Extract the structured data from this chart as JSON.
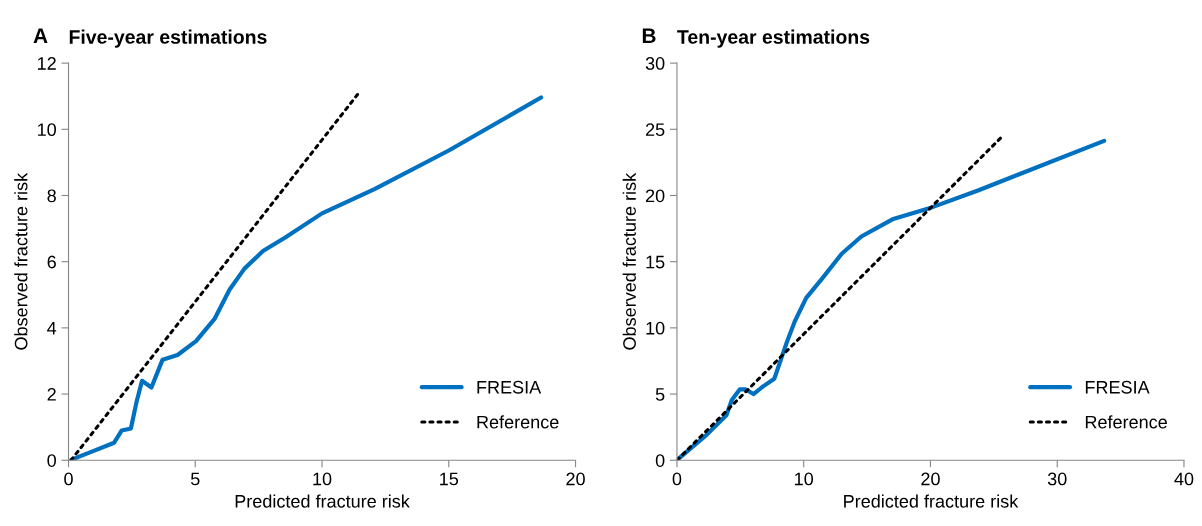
{
  "chart_data": [
    {
      "type": "line",
      "title": "Five-year estimations",
      "annotations": [
        "A"
      ],
      "xlabel": "Predicted fracture risk",
      "ylabel": "Observed fracture risk",
      "xlim": [
        0,
        20
      ],
      "ylim": [
        0,
        12
      ],
      "xticks": [
        0,
        5,
        10,
        15,
        20
      ],
      "yticks": [
        0,
        2,
        4,
        6,
        8,
        10,
        12
      ],
      "grid": false,
      "legend": "bottom right",
      "series": [
        {
          "name": "FRESIA",
          "color": "#0070c0",
          "line_style": "solid",
          "x": [
            0.12,
            0.92,
            1.8,
            2.1,
            2.46,
            2.68,
            2.9,
            3.27,
            3.71,
            4.3,
            5.03,
            5.76,
            6.35,
            6.94,
            7.67,
            8.55,
            10.0,
            12.07,
            15.0,
            18.64
          ],
          "values": [
            0.02,
            0.26,
            0.53,
            0.9,
            0.96,
            1.75,
            2.4,
            2.2,
            3.04,
            3.18,
            3.6,
            4.27,
            5.15,
            5.79,
            6.32,
            6.73,
            7.46,
            8.19,
            9.36,
            10.96
          ]
        },
        {
          "name": "Reference",
          "color": "#000000",
          "line_style": "dotted",
          "x": [
            0.1,
            11.4
          ],
          "values": [
            0,
            11.05
          ]
        }
      ]
    },
    {
      "type": "line",
      "title": "Ten-year estimations",
      "annotations": [
        "B"
      ],
      "xlabel": "Predicted fracture risk",
      "ylabel": "Observed fracture risk",
      "xlim": [
        0,
        40
      ],
      "ylim": [
        0,
        30
      ],
      "xticks": [
        0,
        10,
        20,
        30,
        40
      ],
      "yticks": [
        0,
        5,
        10,
        15,
        20,
        25,
        30
      ],
      "grid": false,
      "legend": "bottom right",
      "series": [
        {
          "name": "FRESIA",
          "color": "#0070c0",
          "line_style": "solid",
          "x": [
            0.06,
            2.2,
            3.9,
            4.33,
            4.95,
            5.42,
            6.04,
            6.8,
            7.68,
            8.2,
            8.67,
            9.3,
            10.2,
            11.45,
            13.0,
            14.55,
            17.0,
            20.1,
            23.8,
            26.9,
            33.7
          ],
          "values": [
            0.06,
            1.8,
            3.4,
            4.56,
            5.35,
            5.35,
            5.0,
            5.58,
            6.16,
            7.6,
            8.92,
            10.5,
            12.27,
            13.72,
            15.6,
            16.9,
            18.2,
            19.1,
            20.4,
            21.57,
            24.13
          ]
        },
        {
          "name": "Reference",
          "color": "#000000",
          "line_style": "dotted",
          "x": [
            0,
            25.6
          ],
          "values": [
            0,
            24.4
          ]
        }
      ]
    }
  ]
}
